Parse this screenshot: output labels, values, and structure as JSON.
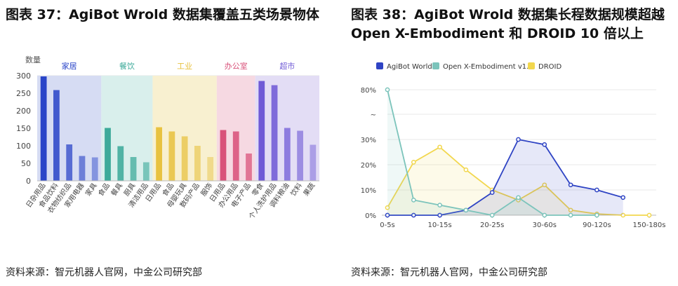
{
  "left_figure": {
    "title": "图表 37：AgiBot Wrold 数据集覆盖五类场景物体",
    "source": "资料来源：智元机器人官网，中金公司研究部"
  },
  "right_figure": {
    "title": "图表 38：AgiBot Wrold 数据集长程数据规模超越 Open X-Embodiment 和 DROID 10 倍以上",
    "source": "资料来源：智元机器人官网，中金公司研究部"
  },
  "chart_data": [
    {
      "type": "bar",
      "title": "",
      "ylabel": "数量",
      "xlabel": "",
      "ylim": [
        0,
        300
      ],
      "yticks": [
        0,
        50,
        100,
        150,
        200,
        250,
        300
      ],
      "grid": true,
      "groups": [
        {
          "name": "家居",
          "color": "#2a45c8",
          "band_color": "#d6dcf3",
          "categories": [
            "日杂用品",
            "食品饮料",
            "衣物纺织品",
            "家用电器",
            "家具"
          ],
          "values": [
            298,
            259,
            104,
            71,
            67
          ]
        },
        {
          "name": "餐饮",
          "color": "#3daa9a",
          "band_color": "#d9efec",
          "categories": [
            "食品",
            "餐具",
            "厨具",
            "清洁用品"
          ],
          "values": [
            151,
            99,
            68,
            53
          ]
        },
        {
          "name": "工业",
          "color": "#e8c240",
          "band_color": "#f8f0d0",
          "categories": [
            "日用品",
            "食品",
            "母婴玩具",
            "数码产品",
            "服饰"
          ],
          "values": [
            153,
            141,
            127,
            100,
            68
          ]
        },
        {
          "name": "办公室",
          "color": "#d9527a",
          "band_color": "#f6d9e2",
          "categories": [
            "日用品",
            "办公用品",
            "电子产品"
          ],
          "values": [
            145,
            141,
            78
          ]
        },
        {
          "name": "超市",
          "color": "#6f5ad6",
          "band_color": "#e3ddf5",
          "categories": [
            "零食",
            "个人洗护用品",
            "调料粮油",
            "饮料",
            "果蔬"
          ],
          "values": [
            285,
            273,
            151,
            143,
            103
          ]
        }
      ]
    },
    {
      "type": "area",
      "title": "",
      "xlabel": "",
      "ylabel": "",
      "categories": [
        "0-5s",
        "10-15s",
        "20-25s",
        "30-60s",
        "90-120s",
        "150-180s"
      ],
      "y_axis_labels": [
        "0%",
        "10%",
        "20%",
        "30%",
        "~",
        "80%"
      ],
      "legend_position": "top-left",
      "grid": true,
      "series": [
        {
          "name": "AgiBot World",
          "color": "#2f44c4",
          "x": [
            0,
            1,
            2,
            3,
            4,
            5,
            6,
            7,
            8,
            9,
            10
          ],
          "values": [
            0,
            0,
            0,
            2,
            9,
            30,
            28,
            12,
            10,
            7,
            null
          ]
        },
        {
          "name": "Open X-Embodiment v1.0",
          "color": "#7cc4bb",
          "x": [
            0,
            1,
            2,
            3,
            4,
            5,
            6,
            7,
            8,
            9,
            10
          ],
          "values": [
            80,
            6,
            4,
            2,
            0,
            7,
            0,
            0,
            0,
            null,
            null
          ]
        },
        {
          "name": "DROID",
          "color": "#f2d74e",
          "x": [
            0,
            1,
            2,
            3,
            4,
            5,
            6,
            7,
            8,
            9,
            10
          ],
          "values": [
            3,
            21,
            27,
            18,
            10,
            6,
            12,
            2,
            0.5,
            0,
            0
          ]
        }
      ]
    }
  ]
}
